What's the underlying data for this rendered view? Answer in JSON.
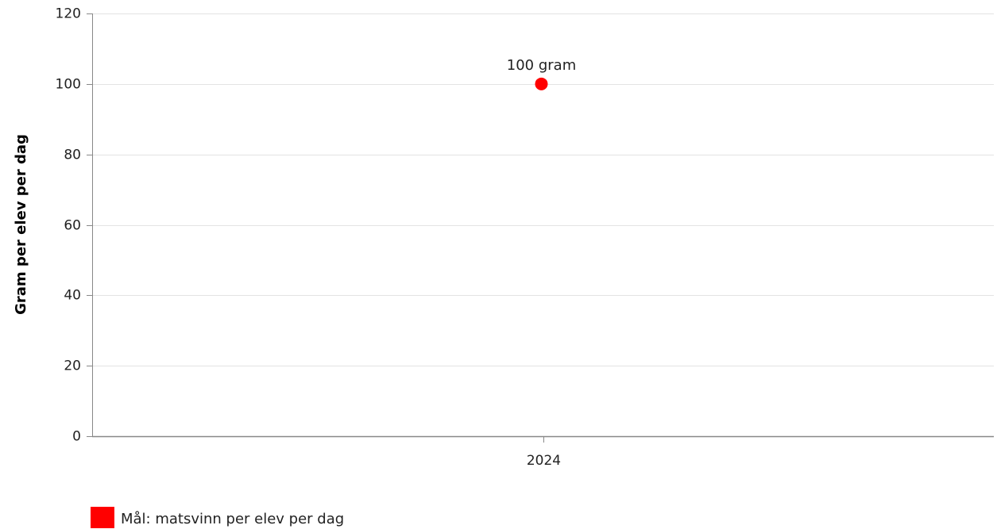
{
  "chart_data": {
    "type": "scatter",
    "title": "",
    "xlabel": "",
    "ylabel": "Gram per elev per dag",
    "categories": [
      "2024"
    ],
    "ylim": [
      0,
      120
    ],
    "yticks": [
      0,
      20,
      40,
      60,
      80,
      100,
      120
    ],
    "grid": true,
    "legend_position": "bottom-left",
    "series": [
      {
        "name": "Mål: matsvinn per elev per dag",
        "color": "#ff0000",
        "points": [
          {
            "x": "2024",
            "y": 100,
            "label": "100 gram"
          }
        ]
      }
    ]
  }
}
